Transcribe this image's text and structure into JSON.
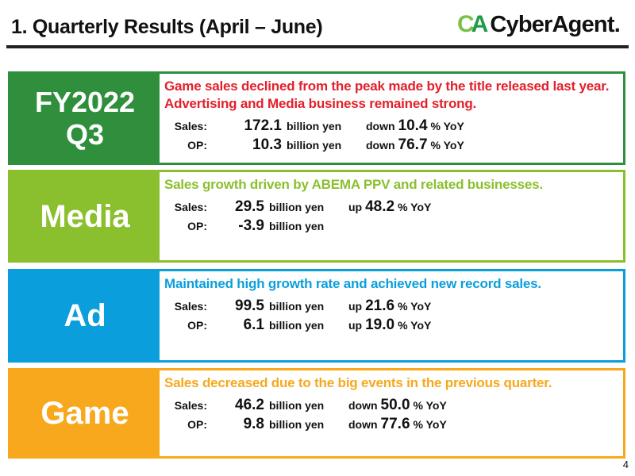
{
  "header": {
    "title": "1.  Quarterly Results (April – June)",
    "logo_mark": "CA",
    "logo_name": "CyberAgent."
  },
  "colors": {
    "total": "#2f8f3c",
    "media": "#8abf2e",
    "ad": "#0a9fdc",
    "game": "#f7a81c",
    "total_text": "#e3202b"
  },
  "panels": [
    {
      "id": "total",
      "tag_lines": [
        "FY2022",
        "Q3"
      ],
      "headline": "Game sales declined from the peak made by the title released last year. Advertising and Media business remained strong.",
      "rows": [
        {
          "label": "Sales:",
          "value": "172.1",
          "unit": "billion yen",
          "dir": "down",
          "pct": "10.4",
          "yoy": "% YoY"
        },
        {
          "label": "OP:",
          "value": "10.3",
          "unit": "billion yen",
          "dir": "down",
          "pct": "76.7",
          "yoy": "%  YoY"
        }
      ]
    },
    {
      "id": "media",
      "tag_lines": [
        "Media"
      ],
      "headline": "Sales growth driven by ABEMA PPV and related businesses.",
      "rows": [
        {
          "label": "Sales:",
          "value": "29.5",
          "unit": "billion yen",
          "dir": "up",
          "pct": "48.2",
          "yoy": "% YoY"
        },
        {
          "label": "OP:",
          "value": "-3.9",
          "unit": "billion yen"
        }
      ]
    },
    {
      "id": "ad",
      "tag_lines": [
        "Ad"
      ],
      "headline": "Maintained high growth rate and achieved new record sales.",
      "rows": [
        {
          "label": "Sales:",
          "value": "99.5",
          "unit": "billion yen",
          "dir": "up",
          "pct": "21.6",
          "yoy": "% YoY"
        },
        {
          "label": "OP:",
          "value": "6.1",
          "unit": "billion yen",
          "dir": "up",
          "pct": "19.0",
          "yoy": "% YoY"
        }
      ]
    },
    {
      "id": "game",
      "tag_lines": [
        "Game"
      ],
      "headline": "Sales decreased due to the big events in the previous quarter.",
      "rows": [
        {
          "label": "Sales:",
          "value": "46.2",
          "unit": "billion yen",
          "dir": "down",
          "pct": "50.0",
          "yoy": "% YoY"
        },
        {
          "label": "OP:",
          "value": "9.8",
          "unit": "billion yen",
          "dir": "down",
          "pct": "77.6",
          "yoy": "% YoY"
        }
      ]
    }
  ],
  "page_number": "4"
}
